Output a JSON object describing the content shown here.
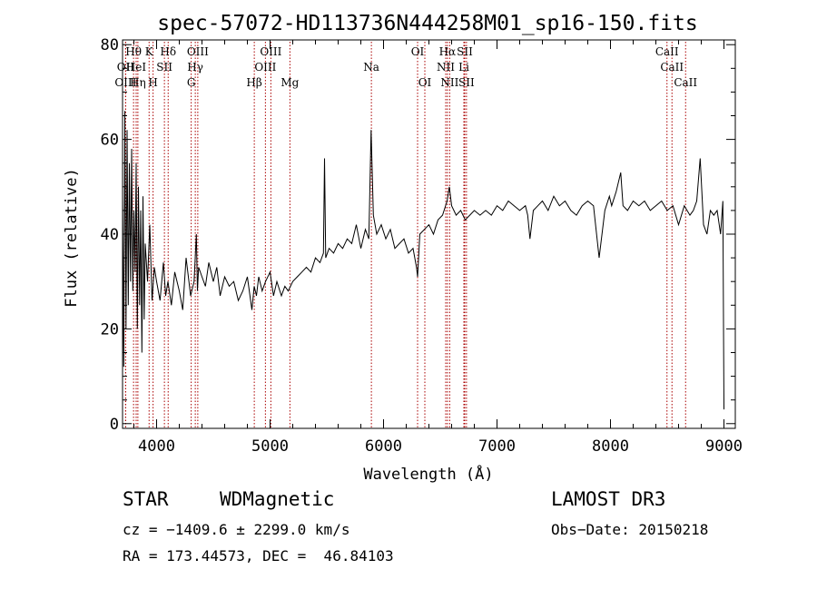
{
  "chart_data": {
    "type": "line",
    "title": "spec-57072-HD113736N444258M01_sp16-150.fits",
    "xlabel": "Wavelength (Å)",
    "ylabel": "Flux (relative)",
    "xlim": [
      3700,
      9100
    ],
    "ylim": [
      -1,
      81
    ],
    "xticks": [
      4000,
      5000,
      6000,
      7000,
      8000,
      9000
    ],
    "yticks": [
      0,
      20,
      40,
      60,
      80
    ],
    "grid": false,
    "legend": "none",
    "line_color": "#000000",
    "marker_color": "#aa0000",
    "spectrum_x": [
      3700,
      3710,
      3720,
      3730,
      3740,
      3750,
      3760,
      3770,
      3780,
      3790,
      3800,
      3810,
      3820,
      3830,
      3840,
      3850,
      3860,
      3870,
      3880,
      3890,
      3900,
      3920,
      3940,
      3960,
      3980,
      4000,
      4030,
      4060,
      4080,
      4100,
      4130,
      4160,
      4200,
      4230,
      4260,
      4300,
      4330,
      4350,
      4360,
      4370,
      4400,
      4430,
      4460,
      4500,
      4530,
      4560,
      4600,
      4640,
      4680,
      4720,
      4760,
      4800,
      4840,
      4860,
      4880,
      4900,
      4930,
      4960,
      5000,
      5030,
      5060,
      5100,
      5130,
      5160,
      5200,
      5240,
      5280,
      5320,
      5360,
      5400,
      5440,
      5470,
      5480,
      5490,
      5520,
      5560,
      5600,
      5640,
      5680,
      5720,
      5760,
      5800,
      5840,
      5870,
      5890,
      5910,
      5940,
      5980,
      6020,
      6060,
      6100,
      6140,
      6180,
      6220,
      6260,
      6290,
      6300,
      6320,
      6360,
      6400,
      6440,
      6480,
      6520,
      6560,
      6580,
      6600,
      6640,
      6680,
      6720,
      6760,
      6800,
      6850,
      6900,
      6950,
      7000,
      7050,
      7100,
      7150,
      7200,
      7250,
      7270,
      7290,
      7320,
      7360,
      7400,
      7450,
      7500,
      7550,
      7600,
      7650,
      7700,
      7750,
      7800,
      7850,
      7900,
      7950,
      7990,
      8010,
      8050,
      8090,
      8110,
      8150,
      8200,
      8250,
      8300,
      8350,
      8400,
      8450,
      8500,
      8550,
      8600,
      8650,
      8700,
      8730,
      8760,
      8790,
      8820,
      8850,
      8880,
      8910,
      8940,
      8970,
      8990,
      9000
    ],
    "spectrum_y": [
      48,
      12,
      66,
      20,
      62,
      25,
      55,
      30,
      58,
      28,
      45,
      32,
      55,
      20,
      50,
      25,
      45,
      15,
      48,
      22,
      38,
      30,
      42,
      26,
      33,
      30,
      26,
      34,
      27,
      30,
      25,
      32,
      28,
      24,
      35,
      27,
      30,
      40,
      28,
      33,
      31,
      29,
      34,
      30,
      33,
      27,
      31,
      29,
      30,
      26,
      28,
      31,
      24,
      29,
      27,
      31,
      28,
      30,
      32,
      27,
      30,
      27,
      29,
      28,
      30,
      31,
      32,
      33,
      32,
      35,
      34,
      36,
      56,
      35,
      37,
      36,
      38,
      37,
      39,
      38,
      42,
      37,
      41,
      39,
      62,
      44,
      40,
      42,
      39,
      41,
      37,
      38,
      39,
      36,
      37,
      33,
      31,
      40,
      41,
      42,
      40,
      43,
      44,
      47,
      50,
      46,
      44,
      45,
      43,
      44,
      45,
      44,
      45,
      44,
      46,
      45,
      47,
      46,
      45,
      46,
      44,
      39,
      45,
      46,
      47,
      45,
      48,
      46,
      47,
      45,
      44,
      46,
      47,
      46,
      35,
      45,
      48,
      46,
      49,
      53,
      46,
      45,
      47,
      46,
      47,
      45,
      46,
      47,
      45,
      46,
      42,
      46,
      44,
      45,
      47,
      56,
      42,
      40,
      45,
      44,
      45,
      40,
      47,
      3
    ],
    "line_markers": [
      {
        "label": "Hθ",
        "x": 3797,
        "row": 1
      },
      {
        "label": "OII",
        "x": 3727,
        "row": 2
      },
      {
        "label": "OIII",
        "x": 3727,
        "row": 3
      },
      {
        "label": "HeI",
        "x": 3820,
        "row": 2
      },
      {
        "label": "Hη",
        "x": 3835,
        "row": 3
      },
      {
        "label": "K",
        "x": 3934,
        "row": 1
      },
      {
        "label": "H",
        "x": 3969,
        "row": 3
      },
      {
        "label": "SII",
        "x": 4069,
        "row": 2
      },
      {
        "label": "Hδ",
        "x": 4102,
        "row": 1
      },
      {
        "label": "G",
        "x": 4305,
        "row": 3
      },
      {
        "label": "Hγ",
        "x": 4341,
        "row": 2
      },
      {
        "label": "OIII",
        "x": 4363,
        "row": 1
      },
      {
        "label": "Hβ",
        "x": 4861,
        "row": 3
      },
      {
        "label": "OIII",
        "x": 4959,
        "row": 2
      },
      {
        "label": "OIII",
        "x": 5007,
        "row": 1
      },
      {
        "label": "Mg",
        "x": 5175,
        "row": 3
      },
      {
        "label": "Na",
        "x": 5893,
        "row": 2
      },
      {
        "label": "OI",
        "x": 6300,
        "row": 1
      },
      {
        "label": "OI",
        "x": 6364,
        "row": 3
      },
      {
        "label": "NII",
        "x": 6548,
        "row": 2
      },
      {
        "label": "Hα",
        "x": 6563,
        "row": 1
      },
      {
        "label": "NII",
        "x": 6583,
        "row": 3
      },
      {
        "label": "Li",
        "x": 6708,
        "row": 2
      },
      {
        "label": "SII",
        "x": 6716,
        "row": 1
      },
      {
        "label": "SII",
        "x": 6731,
        "row": 3
      },
      {
        "label": "CaII",
        "x": 8498,
        "row": 1
      },
      {
        "label": "CaII",
        "x": 8542,
        "row": 2
      },
      {
        "label": "CaII",
        "x": 8662,
        "row": 3
      }
    ]
  },
  "info": {
    "object_class": "STAR",
    "subclass": "WDMagnetic",
    "survey": "LAMOST DR3",
    "redshift_line": "cz = −1409.6 ± 2299.0 km/s",
    "obs_date": "Obs−Date: 20150218",
    "coords": "RA = 173.44573, DEC =  46.84103"
  }
}
